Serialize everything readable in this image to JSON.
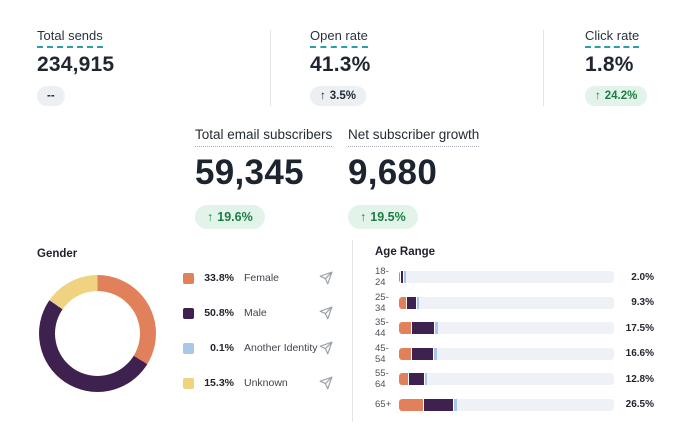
{
  "stats": {
    "total_sends": {
      "label": "Total sends",
      "value": "234,915",
      "delta": "--"
    },
    "open_rate": {
      "label": "Open rate",
      "value": "41.3%",
      "arrow": "↑",
      "delta": "3.5%"
    },
    "click_rate": {
      "label": "Click rate",
      "value": "1.8%",
      "arrow": "↑",
      "delta": "24.2%"
    },
    "total_subscribers": {
      "label": "Total email subscribers",
      "value": "59,345",
      "arrow": "↑",
      "delta": "19.6%"
    },
    "net_growth": {
      "label": "Net subscriber growth",
      "value": "9,680",
      "arrow": "↑",
      "delta": "19.5%"
    }
  },
  "gender_section": {
    "title": "Gender"
  },
  "age_section": {
    "title": "Age Range"
  },
  "icons": {
    "legend_action": "send-icon"
  },
  "colors": {
    "female": "#E0815C",
    "male": "#3F2150",
    "another_identity": "#A9C7E9",
    "unknown": "#EFD381",
    "teal_underline": "#2B9FA8",
    "positive_text": "#1B7E41",
    "positive_bg": "#E2F3E9",
    "neutral_pill_bg": "#EDF0F3",
    "dark_text": "#1F2630",
    "bar_track": "#EEF2F6",
    "icon_gray": "#9aa0a6"
  },
  "chart_data": [
    {
      "type": "pie",
      "title": "Gender",
      "donut": true,
      "labels": [
        "Female",
        "Male",
        "Another Identity",
        "Unknown"
      ],
      "values": [
        33.8,
        50.8,
        0.1,
        15.3
      ],
      "value_labels": [
        "33.8%",
        "50.8%",
        "0.1%",
        "15.3%"
      ],
      "colors": [
        "#E0815C",
        "#3F2150",
        "#A9C7E9",
        "#EFD381"
      ],
      "legend_position": "right",
      "start_angle_deg": 0,
      "direction": "clockwise"
    },
    {
      "type": "bar",
      "title": "Age Range",
      "orientation": "horizontal",
      "stacked": true,
      "categories": [
        "18-24",
        "25-34",
        "35-44",
        "45-54",
        "55-64",
        "65+"
      ],
      "totals": [
        "2.0%",
        "9.3%",
        "17.5%",
        "16.6%",
        "12.8%",
        "26.5%"
      ],
      "totals_numeric": [
        2.0,
        9.3,
        17.5,
        16.6,
        12.8,
        26.5
      ],
      "xlim": [
        0,
        100
      ],
      "track_color": "#EEF2F6",
      "series": [
        {
          "name": "Female",
          "color": "#E0815C",
          "pct_of_track": [
            0.9,
            3.5,
            6.0,
            6.0,
            4.7,
            11.6
          ]
        },
        {
          "name": "Male",
          "color": "#3F2150",
          "pct_of_track": [
            1.4,
            5.0,
            10.7,
            10.2,
            7.4,
            14.0
          ]
        },
        {
          "name": "Another Identity",
          "color": "#A9C7E9",
          "pct_of_track": [
            0.9,
            0.9,
            1.4,
            1.4,
            0.9,
            1.4
          ]
        }
      ]
    }
  ]
}
